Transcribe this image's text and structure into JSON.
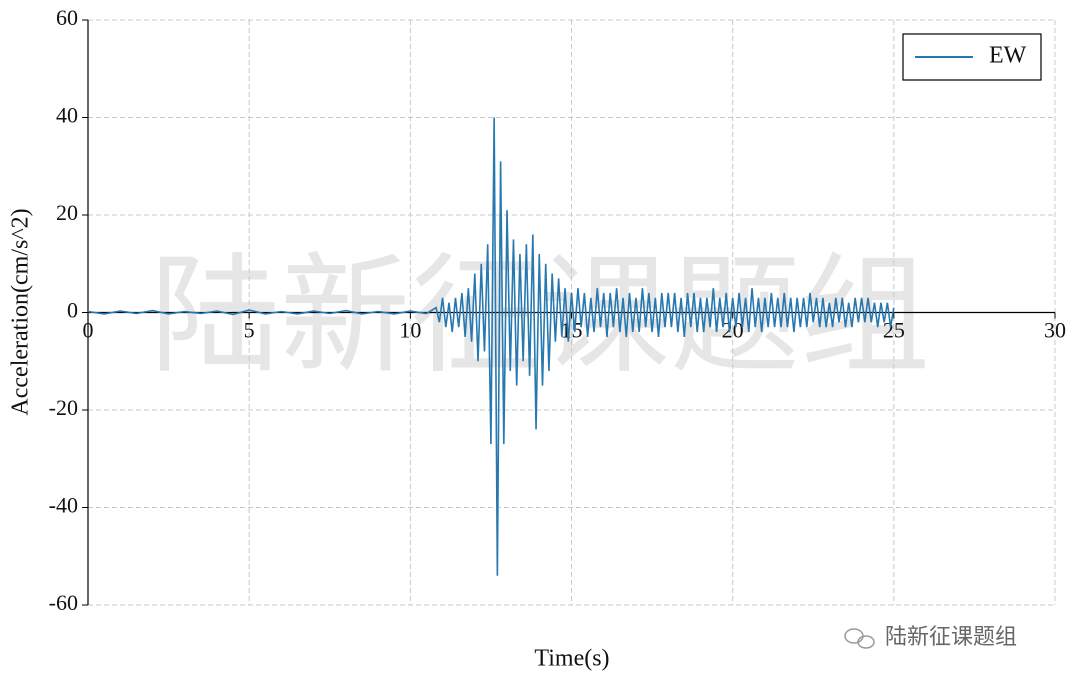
{
  "chart_data": {
    "type": "line",
    "watermark": "陆新征课题组",
    "credit": "陆新征课题组",
    "xlabel": "Time(s)",
    "ylabel": "Acceleration(cm/s^2)",
    "xlim": [
      0,
      30
    ],
    "ylim": [
      -60,
      60
    ],
    "xticks": [
      0,
      5,
      10,
      15,
      20,
      25,
      30
    ],
    "yticks": [
      -60,
      -40,
      -20,
      0,
      20,
      40,
      60
    ],
    "grid": true,
    "legend": "upper right",
    "x": [
      0,
      0.5,
      1,
      1.5,
      2,
      2.5,
      3,
      3.5,
      4,
      4.5,
      5,
      5.5,
      6,
      6.5,
      7,
      7.5,
      8,
      8.5,
      9,
      9.5,
      10,
      10.5,
      10.8,
      10.9,
      11,
      11.1,
      11.2,
      11.3,
      11.4,
      11.5,
      11.6,
      11.7,
      11.8,
      11.9,
      12,
      12.1,
      12.2,
      12.3,
      12.4,
      12.5,
      12.6,
      12.7,
      12.8,
      12.9,
      13,
      13.1,
      13.2,
      13.3,
      13.4,
      13.5,
      13.6,
      13.7,
      13.8,
      13.9,
      14,
      14.1,
      14.2,
      14.3,
      14.4,
      14.5,
      14.6,
      14.7,
      14.8,
      14.9,
      15,
      15.1,
      15.2,
      15.3,
      15.4,
      15.5,
      15.6,
      15.7,
      15.8,
      15.9,
      16,
      16.1,
      16.2,
      16.3,
      16.4,
      16.5,
      16.6,
      16.7,
      16.8,
      16.9,
      17,
      17.1,
      17.2,
      17.3,
      17.4,
      17.5,
      17.6,
      17.7,
      17.8,
      17.9,
      18,
      18.1,
      18.2,
      18.3,
      18.4,
      18.5,
      18.6,
      18.7,
      18.8,
      18.9,
      19,
      19.1,
      19.2,
      19.3,
      19.4,
      19.5,
      19.6,
      19.7,
      19.8,
      19.9,
      20,
      20.1,
      20.2,
      20.3,
      20.4,
      20.5,
      20.6,
      20.7,
      20.8,
      20.9,
      21,
      21.1,
      21.2,
      21.3,
      21.4,
      21.5,
      21.6,
      21.7,
      21.8,
      21.9,
      22,
      22.1,
      22.2,
      22.3,
      22.4,
      22.5,
      22.6,
      22.7,
      22.8,
      22.9,
      23,
      23.1,
      23.2,
      23.3,
      23.4,
      23.5,
      23.6,
      23.7,
      23.8,
      23.9,
      24,
      24.1,
      24.2,
      24.3,
      24.4,
      24.5,
      24.6,
      24.7,
      24.8,
      24.9,
      25
    ],
    "series": [
      {
        "name": "EW",
        "color": "#2878b0",
        "values": [
          0.2,
          -0.3,
          0.3,
          -0.2,
          0.4,
          -0.3,
          0.2,
          -0.2,
          0.3,
          -0.4,
          0.5,
          -0.3,
          0.2,
          -0.3,
          0.3,
          -0.2,
          0.4,
          -0.3,
          0.2,
          -0.3,
          0.3,
          -0.2,
          1,
          -2,
          3,
          -3,
          2,
          -4,
          3,
          -3,
          4,
          -5,
          5,
          -6,
          8,
          -10,
          10,
          -8,
          14,
          -27,
          40,
          -54,
          31,
          -27,
          21,
          -12,
          15,
          -15,
          12,
          -10,
          14,
          -13,
          16,
          -24,
          12,
          -15,
          10,
          -12,
          8,
          -6,
          7,
          -5,
          5,
          -6,
          4,
          -4,
          5,
          -3,
          4,
          -5,
          3,
          -4,
          5,
          -3,
          4,
          -5,
          4,
          -3,
          5,
          -4,
          3,
          -5,
          4,
          -4,
          3,
          -4,
          5,
          -3,
          4,
          -4,
          3,
          -5,
          4,
          -3,
          4,
          -3,
          4,
          -4,
          3,
          -5,
          4,
          -3,
          4,
          -4,
          3,
          -4,
          3,
          -3,
          5,
          -4,
          3,
          -3,
          4,
          -4,
          3,
          -3,
          4,
          -3,
          3,
          -4,
          5,
          -3,
          3,
          -4,
          3,
          -3,
          4,
          -3,
          3,
          -3,
          4,
          -3,
          3,
          -4,
          3,
          -3,
          3,
          -3,
          4,
          -2,
          3,
          -3,
          3,
          -3,
          2,
          -3,
          3,
          -2,
          3,
          -3,
          2,
          -3,
          3,
          -2,
          3,
          -2,
          3,
          -2,
          2,
          -3,
          2,
          -2,
          2,
          -3,
          1
        ]
      }
    ]
  }
}
